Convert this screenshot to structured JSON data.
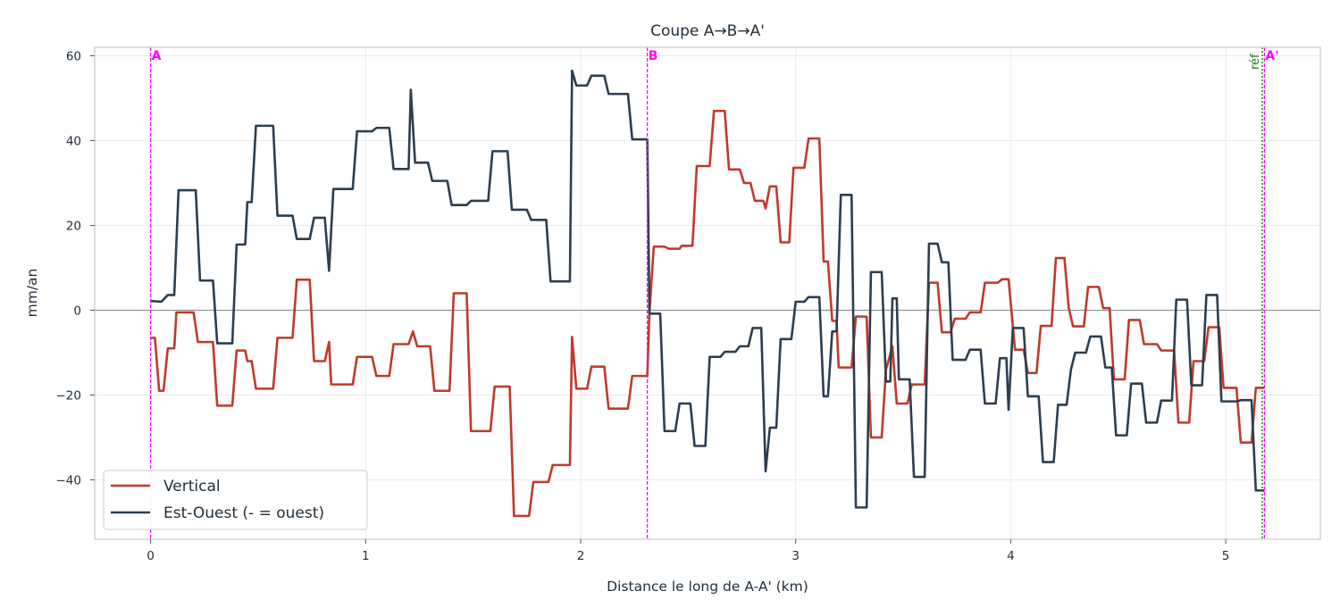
{
  "chart_data": {
    "type": "line",
    "title": "Coupe A→B→A'",
    "xlabel": "Distance le long de A-A' (km)",
    "ylabel": "mm/an",
    "xlim": [
      -0.26,
      5.44
    ],
    "ylim": [
      -54,
      62
    ],
    "xticks": [
      0,
      1,
      2,
      3,
      4,
      5
    ],
    "yticks": [
      -40,
      -20,
      0,
      20,
      40,
      60
    ],
    "grid": true,
    "legend_position": "lower-left",
    "zero_line": true,
    "markers": [
      {
        "label": "A",
        "x": 0,
        "color": "#ff00ff"
      },
      {
        "label": "B",
        "x": 2.31,
        "color": "#ff00ff"
      },
      {
        "label": "A'",
        "x": 5.18,
        "color": "#ff00ff"
      }
    ],
    "reference": {
      "label": "réf",
      "x": 5.17,
      "color": "#1a7a1a"
    },
    "series": [
      {
        "name": "Vertical",
        "color": "#c0392b",
        "points": [
          [
            0,
            -6.5
          ],
          [
            0.02,
            -6.5
          ],
          [
            0.04,
            -19
          ],
          [
            0.06,
            -19
          ],
          [
            0.08,
            -9
          ],
          [
            0.11,
            -9
          ],
          [
            0.12,
            -0.5
          ],
          [
            0.2,
            -0.5
          ],
          [
            0.22,
            -7.5
          ],
          [
            0.29,
            -7.5
          ],
          [
            0.31,
            -22.5
          ],
          [
            0.38,
            -22.5
          ],
          [
            0.4,
            -9.5
          ],
          [
            0.44,
            -9.5
          ],
          [
            0.45,
            -12
          ],
          [
            0.47,
            -12
          ],
          [
            0.49,
            -18.5
          ],
          [
            0.57,
            -18.5
          ],
          [
            0.59,
            -6.5
          ],
          [
            0.66,
            -6.5
          ],
          [
            0.68,
            7.2
          ],
          [
            0.74,
            7.2
          ],
          [
            0.76,
            -12
          ],
          [
            0.81,
            -12
          ],
          [
            0.83,
            -7.5
          ],
          [
            0.84,
            -17.5
          ],
          [
            0.94,
            -17.5
          ],
          [
            0.96,
            -11
          ],
          [
            1.03,
            -11
          ],
          [
            1.05,
            -15.5
          ],
          [
            1.11,
            -15.5
          ],
          [
            1.13,
            -8
          ],
          [
            1.2,
            -8
          ],
          [
            1.22,
            -5
          ],
          [
            1.24,
            -8.5
          ],
          [
            1.3,
            -8.5
          ],
          [
            1.32,
            -19
          ],
          [
            1.39,
            -19
          ],
          [
            1.41,
            4
          ],
          [
            1.47,
            4
          ],
          [
            1.49,
            -28.5
          ],
          [
            1.58,
            -28.5
          ],
          [
            1.6,
            -18
          ],
          [
            1.67,
            -18
          ],
          [
            1.69,
            -48.5
          ],
          [
            1.76,
            -48.5
          ],
          [
            1.78,
            -40.5
          ],
          [
            1.85,
            -40.5
          ],
          [
            1.87,
            -36.5
          ],
          [
            1.95,
            -36.5
          ],
          [
            1.96,
            -6.3
          ],
          [
            1.98,
            -18.5
          ],
          [
            2.03,
            -18.5
          ],
          [
            2.05,
            -13.3
          ],
          [
            2.11,
            -13.3
          ],
          [
            2.13,
            -23.2
          ],
          [
            2.22,
            -23.2
          ],
          [
            2.24,
            -15.5
          ],
          [
            2.31,
            -15.5
          ],
          [
            2.32,
            -0.5
          ],
          [
            2.34,
            15
          ],
          [
            2.39,
            15
          ],
          [
            2.41,
            14.5
          ],
          [
            2.46,
            14.5
          ],
          [
            2.47,
            15.2
          ],
          [
            2.52,
            15.2
          ],
          [
            2.54,
            34
          ],
          [
            2.6,
            34
          ],
          [
            2.62,
            47
          ],
          [
            2.67,
            47
          ],
          [
            2.69,
            33.2
          ],
          [
            2.74,
            33.2
          ],
          [
            2.76,
            30
          ],
          [
            2.79,
            30
          ],
          [
            2.81,
            25.8
          ],
          [
            2.85,
            25.8
          ],
          [
            2.86,
            24
          ],
          [
            2.88,
            29.2
          ],
          [
            2.91,
            29.2
          ],
          [
            2.93,
            16
          ],
          [
            2.97,
            16
          ],
          [
            2.99,
            33.6
          ],
          [
            3.04,
            33.6
          ],
          [
            3.06,
            40.5
          ],
          [
            3.11,
            40.5
          ],
          [
            3.13,
            11.5
          ],
          [
            3.15,
            11.5
          ],
          [
            3.17,
            -2.5
          ],
          [
            3.19,
            -2.5
          ],
          [
            3.2,
            -13.5
          ],
          [
            3.26,
            -13.5
          ],
          [
            3.28,
            -1.5
          ],
          [
            3.33,
            -1.5
          ],
          [
            3.35,
            -30
          ],
          [
            3.4,
            -30
          ],
          [
            3.42,
            -14
          ],
          [
            3.45,
            -8.5
          ],
          [
            3.47,
            -22
          ],
          [
            3.52,
            -22
          ],
          [
            3.54,
            -17.5
          ],
          [
            3.6,
            -17.5
          ],
          [
            3.62,
            6.5
          ],
          [
            3.66,
            6.5
          ],
          [
            3.68,
            -5.2
          ],
          [
            3.72,
            -5.2
          ],
          [
            3.74,
            -2
          ],
          [
            3.79,
            -2
          ],
          [
            3.81,
            -0.5
          ],
          [
            3.86,
            -0.5
          ],
          [
            3.88,
            6.5
          ],
          [
            3.94,
            6.5
          ],
          [
            3.96,
            7.3
          ],
          [
            3.99,
            7.3
          ],
          [
            4.02,
            -9.3
          ],
          [
            4.06,
            -9.3
          ],
          [
            4.08,
            -14.8
          ],
          [
            4.12,
            -14.8
          ],
          [
            4.14,
            -3.7
          ],
          [
            4.19,
            -3.7
          ],
          [
            4.21,
            12.3
          ],
          [
            4.25,
            12.3
          ],
          [
            4.27,
            0.5
          ],
          [
            4.29,
            -3.8
          ],
          [
            4.34,
            -3.8
          ],
          [
            4.36,
            5.5
          ],
          [
            4.41,
            5.5
          ],
          [
            4.43,
            0.5
          ],
          [
            4.46,
            0.5
          ],
          [
            4.48,
            -16.3
          ],
          [
            4.53,
            -16.3
          ],
          [
            4.55,
            -2.3
          ],
          [
            4.6,
            -2.3
          ],
          [
            4.62,
            -8
          ],
          [
            4.68,
            -8
          ],
          [
            4.7,
            -9.5
          ],
          [
            4.76,
            -9.5
          ],
          [
            4.78,
            -26.5
          ],
          [
            4.83,
            -26.5
          ],
          [
            4.85,
            -12
          ],
          [
            4.9,
            -12
          ],
          [
            4.92,
            -4
          ],
          [
            4.97,
            -4
          ],
          [
            4.99,
            -18.3
          ],
          [
            5.05,
            -18.3
          ],
          [
            5.07,
            -31.2
          ],
          [
            5.12,
            -31.2
          ],
          [
            5.14,
            -18.3
          ],
          [
            5.18,
            -18.3
          ]
        ]
      },
      {
        "name": "Est-Ouest (- = ouest)",
        "color": "#2c3e50",
        "points": [
          [
            0,
            2.2
          ],
          [
            0.05,
            2
          ],
          [
            0.08,
            3.6
          ],
          [
            0.11,
            3.6
          ],
          [
            0.13,
            28.3
          ],
          [
            0.21,
            28.3
          ],
          [
            0.23,
            7
          ],
          [
            0.29,
            7
          ],
          [
            0.31,
            -7.8
          ],
          [
            0.38,
            -7.8
          ],
          [
            0.4,
            15.5
          ],
          [
            0.44,
            15.5
          ],
          [
            0.45,
            25.5
          ],
          [
            0.47,
            25.5
          ],
          [
            0.49,
            43.5
          ],
          [
            0.57,
            43.5
          ],
          [
            0.59,
            22.3
          ],
          [
            0.66,
            22.3
          ],
          [
            0.68,
            16.8
          ],
          [
            0.74,
            16.8
          ],
          [
            0.76,
            21.8
          ],
          [
            0.81,
            21.8
          ],
          [
            0.83,
            9.3
          ],
          [
            0.85,
            28.6
          ],
          [
            0.94,
            28.6
          ],
          [
            0.96,
            42.2
          ],
          [
            1.03,
            42.2
          ],
          [
            1.05,
            43
          ],
          [
            1.11,
            43
          ],
          [
            1.13,
            33.3
          ],
          [
            1.2,
            33.3
          ],
          [
            1.21,
            52
          ],
          [
            1.23,
            34.8
          ],
          [
            1.29,
            34.8
          ],
          [
            1.31,
            30.5
          ],
          [
            1.38,
            30.5
          ],
          [
            1.4,
            24.8
          ],
          [
            1.47,
            24.8
          ],
          [
            1.49,
            25.8
          ],
          [
            1.57,
            25.8
          ],
          [
            1.59,
            37.5
          ],
          [
            1.66,
            37.5
          ],
          [
            1.68,
            23.7
          ],
          [
            1.75,
            23.7
          ],
          [
            1.77,
            21.3
          ],
          [
            1.84,
            21.3
          ],
          [
            1.86,
            6.8
          ],
          [
            1.95,
            6.8
          ],
          [
            1.96,
            56.5
          ],
          [
            1.98,
            53
          ],
          [
            2.03,
            53
          ],
          [
            2.05,
            55.3
          ],
          [
            2.11,
            55.3
          ],
          [
            2.13,
            51
          ],
          [
            2.22,
            51
          ],
          [
            2.24,
            40.3
          ],
          [
            2.31,
            40.3
          ],
          [
            2.32,
            -0.8
          ],
          [
            2.37,
            -0.8
          ],
          [
            2.39,
            -28.5
          ],
          [
            2.44,
            -28.5
          ],
          [
            2.46,
            -22
          ],
          [
            2.51,
            -22
          ],
          [
            2.53,
            -32
          ],
          [
            2.58,
            -32
          ],
          [
            2.6,
            -11
          ],
          [
            2.65,
            -11
          ],
          [
            2.67,
            -9.8
          ],
          [
            2.72,
            -9.8
          ],
          [
            2.74,
            -8.5
          ],
          [
            2.78,
            -8.5
          ],
          [
            2.8,
            -4.2
          ],
          [
            2.84,
            -4.2
          ],
          [
            2.86,
            -38
          ],
          [
            2.88,
            -27.7
          ],
          [
            2.91,
            -27.7
          ],
          [
            2.93,
            -6.8
          ],
          [
            2.98,
            -6.8
          ],
          [
            3,
            2
          ],
          [
            3.04,
            2
          ],
          [
            3.06,
            3.1
          ],
          [
            3.11,
            3.1
          ],
          [
            3.13,
            -20.3
          ],
          [
            3.15,
            -20.3
          ],
          [
            3.17,
            -5
          ],
          [
            3.19,
            -5
          ],
          [
            3.21,
            27.2
          ],
          [
            3.26,
            27.2
          ],
          [
            3.28,
            -46.5
          ],
          [
            3.33,
            -46.5
          ],
          [
            3.35,
            9
          ],
          [
            3.4,
            9
          ],
          [
            3.42,
            -16.8
          ],
          [
            3.44,
            -16.8
          ],
          [
            3.45,
            2.8
          ],
          [
            3.47,
            2.8
          ],
          [
            3.48,
            -16.3
          ],
          [
            3.53,
            -16.3
          ],
          [
            3.55,
            -39.3
          ],
          [
            3.6,
            -39.3
          ],
          [
            3.62,
            15.7
          ],
          [
            3.66,
            15.7
          ],
          [
            3.68,
            11.3
          ],
          [
            3.71,
            11.3
          ],
          [
            3.73,
            -11.7
          ],
          [
            3.79,
            -11.7
          ],
          [
            3.81,
            -9.3
          ],
          [
            3.86,
            -9.3
          ],
          [
            3.88,
            -22
          ],
          [
            3.93,
            -22
          ],
          [
            3.95,
            -11.3
          ],
          [
            3.98,
            -11.3
          ],
          [
            3.99,
            -23.5
          ],
          [
            4.01,
            -4.2
          ],
          [
            4.06,
            -4.2
          ],
          [
            4.08,
            -20.3
          ],
          [
            4.13,
            -20.3
          ],
          [
            4.15,
            -35.8
          ],
          [
            4.2,
            -35.8
          ],
          [
            4.22,
            -22.3
          ],
          [
            4.26,
            -22.3
          ],
          [
            4.28,
            -14
          ],
          [
            4.3,
            -10
          ],
          [
            4.35,
            -10
          ],
          [
            4.37,
            -6.2
          ],
          [
            4.42,
            -6.2
          ],
          [
            4.44,
            -13.5
          ],
          [
            4.47,
            -13.5
          ],
          [
            4.49,
            -29.5
          ],
          [
            4.54,
            -29.5
          ],
          [
            4.56,
            -17.3
          ],
          [
            4.61,
            -17.3
          ],
          [
            4.63,
            -26.5
          ],
          [
            4.68,
            -26.5
          ],
          [
            4.7,
            -21.3
          ],
          [
            4.75,
            -21.3
          ],
          [
            4.77,
            2.5
          ],
          [
            4.82,
            2.5
          ],
          [
            4.84,
            -17.7
          ],
          [
            4.89,
            -17.7
          ],
          [
            4.91,
            3.6
          ],
          [
            4.96,
            3.6
          ],
          [
            4.98,
            -21.5
          ],
          [
            5.05,
            -21.5
          ],
          [
            5.07,
            -21.2
          ],
          [
            5.12,
            -21.2
          ],
          [
            5.14,
            -42.5
          ],
          [
            5.18,
            -42.5
          ]
        ]
      }
    ]
  }
}
